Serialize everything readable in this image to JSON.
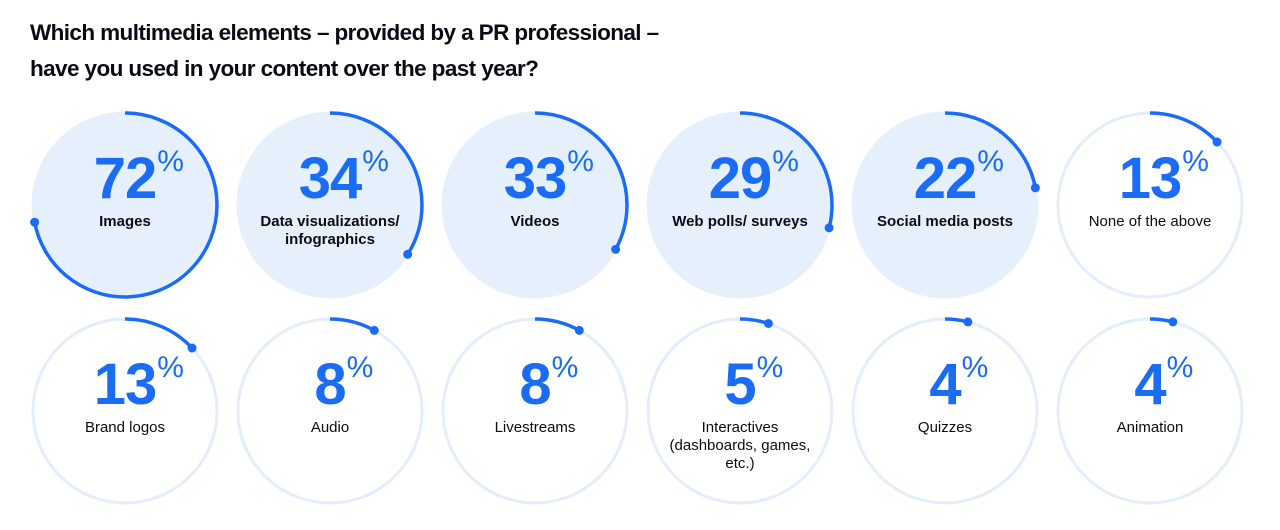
{
  "title": {
    "line1": "Which multimedia elements – provided by a PR professional –",
    "line2": "have you used in your content over the past year?"
  },
  "colors": {
    "accent": "#1a6cf5",
    "fill": "#e6f0fd",
    "ring": "#e3edfb",
    "text": "#0b0b14"
  },
  "items": [
    {
      "value": "72",
      "unit": "%",
      "label": "Images",
      "filled": true
    },
    {
      "value": "34",
      "unit": "%",
      "label": "Data visualizations/ infographics",
      "filled": true
    },
    {
      "value": "33",
      "unit": "%",
      "label": "Videos",
      "filled": true
    },
    {
      "value": "29",
      "unit": "%",
      "label": "Web polls/ surveys",
      "filled": true
    },
    {
      "value": "22",
      "unit": "%",
      "label": "Social media posts",
      "filled": true
    },
    {
      "value": "13",
      "unit": "%",
      "label": "None of the above",
      "filled": false
    },
    {
      "value": "13",
      "unit": "%",
      "label": "Brand logos",
      "filled": false
    },
    {
      "value": "8",
      "unit": "%",
      "label": "Audio",
      "filled": false
    },
    {
      "value": "8",
      "unit": "%",
      "label": "Livestreams",
      "filled": false
    },
    {
      "value": "5",
      "unit": "%",
      "label": "Interactives (dashboards, games, etc.)",
      "filled": false
    },
    {
      "value": "4",
      "unit": "%",
      "label": "Quizzes",
      "filled": false
    },
    {
      "value": "4",
      "unit": "%",
      "label": "Animation",
      "filled": false
    }
  ],
  "chart_data": {
    "type": "radial-progress",
    "title": "Which multimedia elements – provided by a PR professional – have you used in your content over the past year?",
    "categories": [
      "Images",
      "Data visualizations/infographics",
      "Videos",
      "Web polls/surveys",
      "Social media posts",
      "None of the above",
      "Brand logos",
      "Audio",
      "Livestreams",
      "Interactives (dashboards, games, etc.)",
      "Quizzes",
      "Animation"
    ],
    "values": [
      72,
      34,
      33,
      29,
      22,
      13,
      13,
      8,
      8,
      5,
      4,
      4
    ],
    "unit": "%",
    "ylim": [
      0,
      100
    ],
    "layout": "2 rows x 6 columns of circular gauges, arc starts at 12 o'clock clockwise"
  }
}
